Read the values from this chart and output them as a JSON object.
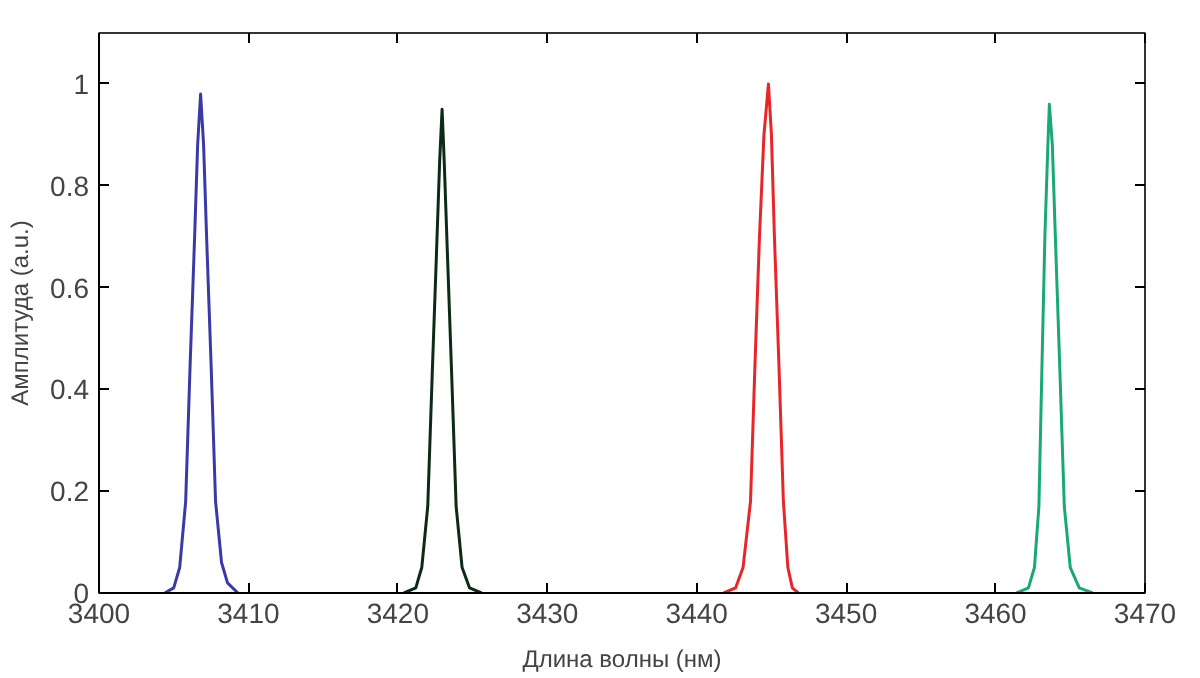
{
  "chart_data": {
    "type": "line",
    "xlabel": "Длина волны (нм)",
    "ylabel": "Амплитуда (a.u.)",
    "xlim": [
      3400,
      3470
    ],
    "ylim": [
      0,
      1.1
    ],
    "xticks": [
      3400,
      3410,
      3420,
      3430,
      3440,
      3450,
      3460,
      3470
    ],
    "yticks": [
      0,
      0.2,
      0.4,
      0.6,
      0.8,
      1
    ],
    "grid": false,
    "series": [
      {
        "color": "#3a3aa6",
        "x": [
          3404.4,
          3405.0,
          3405.4,
          3405.8,
          3406.1,
          3406.4,
          3406.6,
          3406.8,
          3407.0,
          3407.2,
          3407.5,
          3407.8,
          3408.2,
          3408.6,
          3409.3
        ],
        "values": [
          0,
          0.01,
          0.05,
          0.18,
          0.45,
          0.7,
          0.88,
          0.98,
          0.88,
          0.7,
          0.45,
          0.18,
          0.06,
          0.02,
          0
        ]
      },
      {
        "color": "#0d2a14",
        "x": [
          3420.4,
          3421.2,
          3421.6,
          3422.0,
          3422.3,
          3422.6,
          3422.8,
          3422.96,
          3423.1,
          3423.3,
          3423.6,
          3423.9,
          3424.3,
          3424.8,
          3425.6
        ],
        "values": [
          0,
          0.01,
          0.05,
          0.17,
          0.43,
          0.68,
          0.85,
          0.95,
          0.85,
          0.68,
          0.43,
          0.17,
          0.05,
          0.01,
          0
        ]
      },
      {
        "color": "#e8262a",
        "x": [
          3441.8,
          3442.6,
          3443.1,
          3443.6,
          3443.9,
          3444.2,
          3444.5,
          3444.8,
          3445.0,
          3445.2,
          3445.5,
          3445.8,
          3446.1,
          3446.4,
          3446.8
        ],
        "values": [
          0,
          0.01,
          0.05,
          0.18,
          0.45,
          0.7,
          0.9,
          1.0,
          0.9,
          0.7,
          0.45,
          0.18,
          0.05,
          0.01,
          0
        ]
      },
      {
        "color": "#19a876",
        "x": [
          3461.4,
          3462.2,
          3462.6,
          3462.9,
          3463.1,
          3463.3,
          3463.5,
          3463.6,
          3463.8,
          3464.0,
          3464.3,
          3464.6,
          3465.0,
          3465.6,
          3466.5
        ],
        "values": [
          0,
          0.01,
          0.05,
          0.17,
          0.44,
          0.7,
          0.88,
          0.96,
          0.88,
          0.7,
          0.44,
          0.17,
          0.05,
          0.01,
          0
        ]
      }
    ]
  }
}
